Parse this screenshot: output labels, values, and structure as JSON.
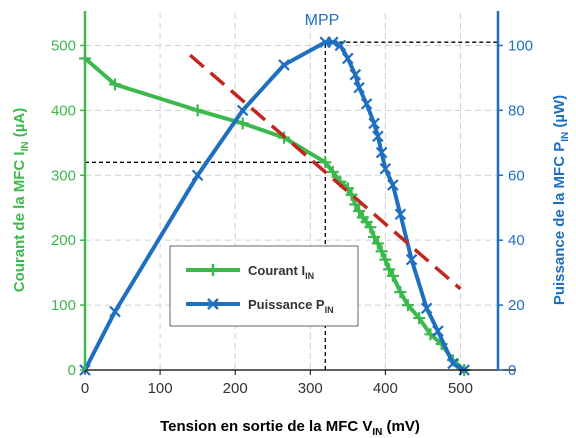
{
  "colors": {
    "current": "#3cb94c",
    "power": "#1f6fc0",
    "trend": "#c0281e",
    "guide": "#000000",
    "grid": "#d0d0d0",
    "text": "#333333"
  },
  "chart_data": {
    "type": "line",
    "xlabel_main": "Tension en sortie de la MFC V",
    "xlabel_sub": "IN",
    "xlabel_unit": " (mV)",
    "ylabel_left_main": "Courant de la MFC I",
    "ylabel_left_sub": "IN",
    "ylabel_left_unit": " (µA)",
    "ylabel_right_main": "Puissance de la MFC P",
    "ylabel_right_sub": "IN",
    "ylabel_right_unit": " (µW)",
    "xlim": [
      0,
      550
    ],
    "ylim_left": [
      0,
      550
    ],
    "ylim_right": [
      0,
      110
    ],
    "x_ticks": [
      "0",
      "100",
      "200",
      "300",
      "400",
      "500"
    ],
    "y_left_ticks": [
      "0",
      "100",
      "200",
      "300",
      "400",
      "500"
    ],
    "y_right_ticks": [
      "0",
      "20",
      "40",
      "60",
      "80",
      "100"
    ],
    "grid": true,
    "legend_position": "center-left",
    "annotation": "MPP",
    "mpp": {
      "x": 320,
      "current": 320,
      "power": 101
    },
    "series": [
      {
        "name_main": "Courant I",
        "name_sub": "IN",
        "axis": "left",
        "color": "#3cb94c",
        "marker": "plus",
        "x": [
          0,
          40,
          150,
          210,
          265,
          320,
          330,
          340,
          350,
          355,
          360,
          365,
          370,
          375,
          380,
          385,
          390,
          395,
          400,
          405,
          410,
          420,
          430,
          445,
          460,
          475,
          490,
          505
        ],
        "y": [
          480,
          440,
          400,
          380,
          358,
          320,
          305,
          290,
          280,
          270,
          255,
          245,
          235,
          228,
          220,
          205,
          195,
          183,
          170,
          155,
          145,
          120,
          100,
          80,
          55,
          40,
          15,
          0
        ]
      },
      {
        "name_main": "Puissance P",
        "name_sub": "IN",
        "axis": "right",
        "color": "#1f6fc0",
        "marker": "x",
        "x": [
          0,
          40,
          150,
          210,
          265,
          320,
          330,
          340,
          350,
          360,
          365,
          375,
          385,
          390,
          395,
          400,
          410,
          420,
          435,
          455,
          470,
          490,
          505
        ],
        "y": [
          0,
          18,
          60,
          80,
          94,
          101,
          101,
          100,
          96,
          91,
          87,
          82,
          76,
          72,
          67,
          62,
          57,
          48,
          34,
          19,
          12,
          2,
          0
        ]
      }
    ],
    "trendline": {
      "x": [
        140,
        500
      ],
      "y": [
        485,
        125
      ]
    }
  }
}
